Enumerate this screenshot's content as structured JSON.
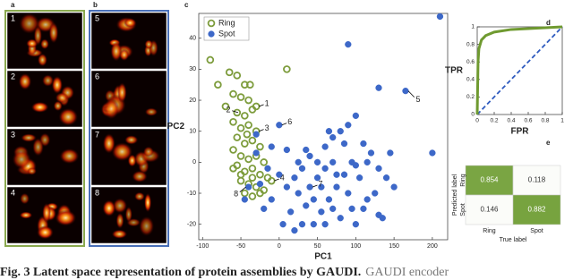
{
  "panels": {
    "a": "a",
    "b": "b",
    "c": "c",
    "d": "d",
    "e": "e"
  },
  "images": [
    "1",
    "2",
    "3",
    "4",
    "5",
    "6",
    "7",
    "8"
  ],
  "caption": {
    "lead": "Fig. 3  Latent space representation of protein assemblies by GAUDI.",
    "rest": "GAUDI encoder"
  },
  "chart_data": [
    {
      "type": "scatter",
      "xlabel": "PC1",
      "ylabel": "PC2",
      "xlim": [
        -105,
        220
      ],
      "ylim": [
        -25,
        48
      ],
      "xticks": [
        -100,
        -50,
        0,
        50,
        100,
        150,
        200
      ],
      "yticks": [
        -20,
        -10,
        0,
        10,
        20,
        30,
        40
      ],
      "series": [
        {
          "name": "Ring",
          "color": "#7d9c3c",
          "hollow": true,
          "x": [
            -90,
            -80,
            -65,
            -55,
            -45,
            -60,
            -50,
            -40,
            -70,
            -55,
            -45,
            -35,
            -60,
            -50,
            -40,
            -30,
            -55,
            -45,
            -35,
            -25,
            -60,
            -50,
            -40,
            -30,
            -20,
            -55,
            -45,
            -35,
            -25,
            -15,
            -50,
            -40,
            -30,
            -20,
            -10,
            -45,
            -35,
            -25,
            -30,
            10,
            -50,
            -35,
            -60,
            -38,
            -42
          ],
          "y": [
            33,
            25,
            29,
            28,
            25,
            22,
            21,
            20,
            18,
            16,
            15,
            17,
            13,
            11,
            12,
            10,
            8,
            6,
            7,
            5,
            4,
            2,
            1,
            2,
            0,
            -1,
            -3,
            -2,
            -4,
            -5,
            -6,
            -7,
            -8,
            -9,
            -6,
            -10,
            -11,
            -10,
            18,
            30,
            -4,
            -5,
            -2,
            25,
            9
          ]
        },
        {
          "name": "Spot",
          "color": "#3d68c8",
          "hollow": false,
          "x": [
            210,
            90,
            130,
            165,
            200,
            -30,
            0,
            -10,
            -30,
            10,
            -15,
            0,
            10,
            -10,
            20,
            30,
            40,
            50,
            60,
            70,
            80,
            90,
            100,
            110,
            120,
            130,
            125,
            135,
            115,
            105,
            95,
            85,
            75,
            65,
            55,
            45,
            35,
            25,
            15,
            30,
            40,
            50,
            60,
            70,
            80,
            90,
            100,
            110,
            70,
            75,
            85,
            95,
            -20,
            5,
            20,
            45,
            55,
            65,
            115,
            140,
            150,
            130,
            -40,
            -45,
            -25,
            100,
            35,
            60,
            145,
            25
          ],
          "y": [
            47,
            38,
            24,
            23,
            3,
            9,
            12,
            5,
            3,
            4,
            -2,
            -4,
            -8,
            -12,
            -5,
            -2,
            2,
            0,
            5,
            8,
            10,
            12,
            15,
            6,
            3,
            -2,
            -10,
            -18,
            -12,
            -5,
            0,
            -4,
            -8,
            -12,
            -16,
            -20,
            -14,
            -10,
            -16,
            -20,
            -8,
            -5,
            -2,
            -15,
            -18,
            -10,
            -20,
            -15,
            0,
            -4,
            6,
            -15,
            -15,
            -20,
            -22,
            -12,
            -8,
            10,
            0,
            -5,
            -8,
            -17,
            -8,
            -12,
            -7,
            -1,
            4,
            -20,
            3,
            0
          ]
        }
      ],
      "annotations": [
        {
          "text": "1",
          "x": -30,
          "y": 18
        },
        {
          "text": "2",
          "x": -50,
          "y": 16
        },
        {
          "text": "3",
          "x": -30,
          "y": 10
        },
        {
          "text": "4",
          "x": -10,
          "y": -6
        },
        {
          "text": "5",
          "x": 165,
          "y": 23
        },
        {
          "text": "6",
          "x": 0,
          "y": 12
        },
        {
          "text": "7",
          "x": 40,
          "y": -8
        },
        {
          "text": "8",
          "x": -40,
          "y": -8
        }
      ]
    },
    {
      "type": "line",
      "xlabel": "FPR",
      "ylabel": "TPR",
      "color": "#6f9a30",
      "xlim": [
        0,
        1
      ],
      "ylim": [
        0,
        1
      ],
      "xticks": [
        0,
        0.2,
        0.4,
        0.6,
        0.8,
        1
      ],
      "yticks": [
        0,
        0.2,
        0.4,
        0.6,
        0.8,
        1
      ],
      "x": [
        0,
        0.01,
        0.02,
        0.05,
        0.1,
        0.2,
        0.4,
        0.6,
        0.8,
        1
      ],
      "y": [
        0,
        0.6,
        0.75,
        0.85,
        0.9,
        0.94,
        0.97,
        0.98,
        0.99,
        1
      ]
    },
    {
      "type": "heatmap",
      "xlabel": "True label",
      "ylabel": "Predicted label",
      "categories": [
        "Ring",
        "Spot"
      ],
      "color": "#6a9a2c",
      "values": [
        [
          0.854,
          0.118
        ],
        [
          0.146,
          0.882
        ]
      ]
    }
  ]
}
